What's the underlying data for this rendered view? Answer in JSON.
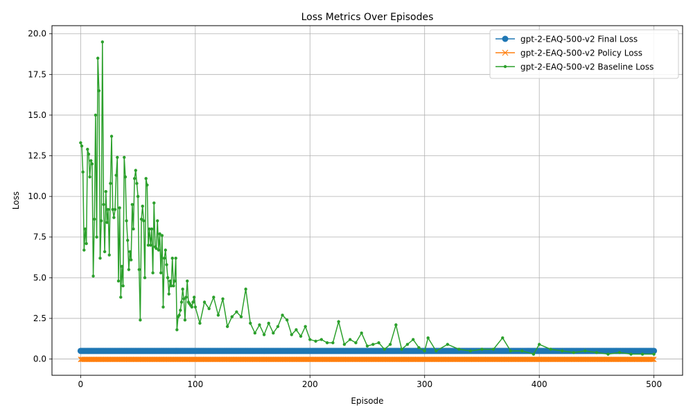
{
  "chart_data": {
    "type": "line",
    "title": "Loss Metrics Over Episodes",
    "xlabel": "Episode",
    "ylabel": "Loss",
    "xlim": [
      -25,
      525
    ],
    "ylim": [
      -1.0,
      20.5
    ],
    "xticks": [
      0,
      100,
      200,
      300,
      400,
      500
    ],
    "yticks": [
      0.0,
      2.5,
      5.0,
      7.5,
      10.0,
      12.5,
      15.0,
      17.5,
      20.0
    ],
    "xtick_labels": [
      "0",
      "100",
      "200",
      "300",
      "400",
      "500"
    ],
    "ytick_labels": [
      "0.0",
      "2.5",
      "5.0",
      "7.5",
      "10.0",
      "12.5",
      "15.0",
      "17.5",
      "20.0"
    ],
    "grid": true,
    "legend_position": "top-right",
    "x_range": [
      0,
      500
    ],
    "series": [
      {
        "name": "gpt-2-EAQ-500-v2 Final Loss",
        "color": "#1f77b4",
        "marker": "circle",
        "constant": 0.5
      },
      {
        "name": "gpt-2-EAQ-500-v2 Policy Loss",
        "color": "#ff7f0e",
        "marker": "x",
        "constant": -0.02
      },
      {
        "name": "gpt-2-EAQ-500-v2 Baseline Loss",
        "color": "#2ca02c",
        "marker": "point",
        "x": [
          0,
          1,
          2,
          3,
          4,
          5,
          6,
          7,
          8,
          9,
          10,
          11,
          12,
          13,
          14,
          15,
          16,
          17,
          18,
          19,
          20,
          21,
          22,
          23,
          24,
          25,
          26,
          27,
          28,
          29,
          30,
          31,
          32,
          33,
          34,
          35,
          36,
          37,
          38,
          39,
          40,
          41,
          42,
          43,
          44,
          45,
          46,
          47,
          48,
          49,
          50,
          51,
          52,
          53,
          54,
          55,
          56,
          57,
          58,
          59,
          60,
          61,
          62,
          63,
          64,
          65,
          66,
          67,
          68,
          69,
          70,
          71,
          72,
          73,
          74,
          75,
          76,
          77,
          78,
          79,
          80,
          81,
          82,
          83,
          84,
          85,
          86,
          87,
          88,
          89,
          90,
          91,
          92,
          93,
          94,
          95,
          96,
          97,
          98,
          99,
          100,
          104,
          108,
          112,
          116,
          120,
          124,
          128,
          132,
          136,
          140,
          144,
          148,
          152,
          156,
          160,
          164,
          168,
          172,
          176,
          180,
          184,
          188,
          192,
          196,
          200,
          205,
          210,
          215,
          220,
          225,
          230,
          235,
          240,
          245,
          250,
          255,
          260,
          265,
          270,
          275,
          280,
          285,
          290,
          295,
          300,
          303,
          310,
          320,
          330,
          340,
          350,
          360,
          368,
          375,
          385,
          395,
          400,
          410,
          420,
          430,
          440,
          450,
          460,
          470,
          480,
          490,
          500
        ],
        "y": [
          13.3,
          13.1,
          11.5,
          6.7,
          8.0,
          7.1,
          12.9,
          12.6,
          11.2,
          12.2,
          12.0,
          5.1,
          8.6,
          15.0,
          7.5,
          18.5,
          16.5,
          6.2,
          8.5,
          19.5,
          9.5,
          6.6,
          10.3,
          8.4,
          9.2,
          6.4,
          10.8,
          13.7,
          9.2,
          8.7,
          9.2,
          11.3,
          12.4,
          4.8,
          9.3,
          3.8,
          5.7,
          4.5,
          12.4,
          11.2,
          8.5,
          7.3,
          5.5,
          6.6,
          6.1,
          9.5,
          8.0,
          11.1,
          11.6,
          10.8,
          10.0,
          5.5,
          2.4,
          8.6,
          9.4,
          8.5,
          5.0,
          11.1,
          10.7,
          7.0,
          8.0,
          7.0,
          8.0,
          5.3,
          9.6,
          6.9,
          6.8,
          8.5,
          6.7,
          7.7,
          5.3,
          7.6,
          3.2,
          6.2,
          6.7,
          5.8,
          5.0,
          4.0,
          4.8,
          4.5,
          6.2,
          4.5,
          4.8,
          6.2,
          1.8,
          2.6,
          2.7,
          3.0,
          3.5,
          4.3,
          3.7,
          2.4,
          3.8,
          4.8,
          3.5,
          3.4,
          3.3,
          3.2,
          3.5,
          3.8,
          3.2,
          2.2,
          3.5,
          3.1,
          3.8,
          2.7,
          3.7,
          2.0,
          2.6,
          2.9,
          2.6,
          4.3,
          2.2,
          1.6,
          2.1,
          1.5,
          2.2,
          1.6,
          2.0,
          2.7,
          2.4,
          1.5,
          1.8,
          1.4,
          2.0,
          1.2,
          1.1,
          1.2,
          1.0,
          1.0,
          2.3,
          0.9,
          1.2,
          1.0,
          1.6,
          0.8,
          0.9,
          1.0,
          0.6,
          0.9,
          2.1,
          0.6,
          0.9,
          1.2,
          0.7,
          0.5,
          1.3,
          0.5,
          0.9,
          0.6,
          0.5,
          0.6,
          0.6,
          1.3,
          0.5,
          0.5,
          0.3,
          0.9,
          0.6,
          0.5,
          0.4,
          0.5,
          0.4,
          0.3,
          0.4,
          0.3,
          0.3,
          0.3
        ]
      }
    ]
  }
}
